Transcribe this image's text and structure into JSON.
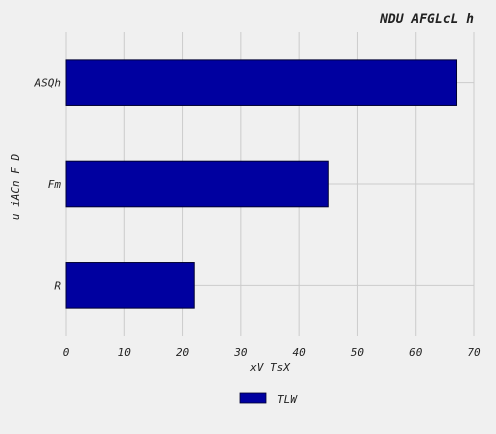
{
  "chart_data": {
    "type": "bar",
    "orientation": "horizontal",
    "title": "NDU AFGLcL h",
    "xlabel": "xV TsX",
    "ylabel": "u  iACn F D",
    "categories": [
      "ASQh",
      "Fm",
      "R"
    ],
    "series": [
      {
        "name": "TLW",
        "values": [
          67,
          45,
          22
        ]
      }
    ],
    "xlim": [
      0,
      70
    ],
    "xticks": [
      "0",
      "10",
      "20",
      "30",
      "40",
      "50",
      "60",
      "70"
    ],
    "grid": true,
    "legend_position": "bottom-center",
    "colors": {
      "bar": "#0000a0",
      "bar_edge": "#000033",
      "grid": "#cbcbcb",
      "background": "#f0f0f0"
    }
  }
}
